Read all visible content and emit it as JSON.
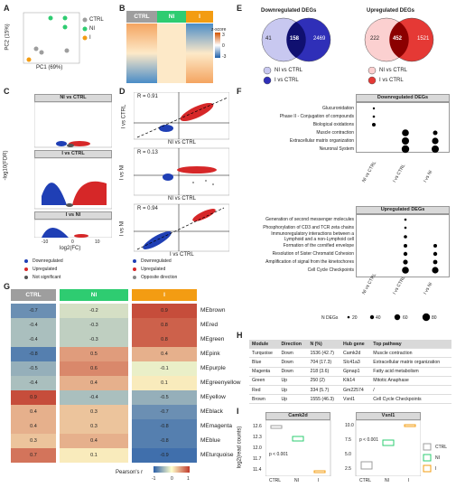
{
  "panels": {
    "A": "A",
    "B": "B",
    "C": "C",
    "D": "D",
    "E": "E",
    "F": "F",
    "G": "G",
    "H": "H",
    "I": "I"
  },
  "groups": [
    "CTRL",
    "NI",
    "I"
  ],
  "colors": {
    "ctrl": "#9e9e9e",
    "ni": "#2ecc71",
    "i": "#f39c12",
    "down": "#1f3fb5",
    "up": "#d62728",
    "ns": "#555555"
  },
  "pca": {
    "xlabel": "PC1 (69%)",
    "ylabel": "PC2 (15%)"
  },
  "heatmap": {
    "legend_title": "z-score",
    "ticks": [
      "3",
      "0",
      "-3"
    ]
  },
  "volcano": {
    "titles": [
      "NI vs CTRL",
      "I vs CTRL",
      "I vs NI"
    ],
    "xlabel": "log2(FC)",
    "ylabel": "-log10(FDR)",
    "xticks": [
      "-10",
      "0",
      "10"
    ],
    "legend": [
      "Downregulated",
      "Upregulated",
      "Not significant"
    ]
  },
  "correlation": {
    "panels": [
      {
        "r": "R = 0.91",
        "ylabel": "I vs CTRL",
        "xlabel": "NI vs CTRL"
      },
      {
        "r": "R = 0.13",
        "ylabel": "I vs NI",
        "xlabel": "NI vs CTRL"
      },
      {
        "r": "R = 0.94",
        "ylabel": "I vs NI",
        "xlabel": "I vs CTRL"
      }
    ],
    "xticks": [
      "-10",
      "-5",
      "0",
      "5",
      "10"
    ],
    "legend": [
      "Downregulated",
      "Upregulated",
      "Opposite direction"
    ]
  },
  "venn": {
    "down": {
      "title": "Downregulated DEGs",
      "left": "41",
      "overlap": "158",
      "right": "2469",
      "legend": [
        "NI vs CTRL",
        "I vs CTRL"
      ]
    },
    "up": {
      "title": "Upregulated DEGs",
      "left": "222",
      "overlap": "452",
      "right": "1521",
      "legend": [
        "NI vs CTRL",
        "I vs CTRL"
      ]
    }
  },
  "enrichment": {
    "down_title": "Downregulated DEGs",
    "down_terms": [
      "Glucuronidation",
      "Phase II - Conjugation of compounds",
      "Biological oxidations",
      "Muscle contraction",
      "Extracellular matrix organization",
      "Neuronal System"
    ],
    "up_title": "Upregulated DEGs",
    "up_terms": [
      "Generation of second messenger molecules",
      "Phosphorylation of CD3 and TCR zeta chains",
      "Immunoregulatory interactions between a",
      "Lymphoid and a non-Lymphoid cell",
      "Formation of the cornified envelope",
      "Resolution of Sister Chromatid Cohesion",
      "Amplification of signal from the kinetochores",
      "Cell Cycle Checkpoints"
    ],
    "columns": [
      "NI vs CTRL",
      "I vs CTRL",
      "I vs NI"
    ],
    "size_title": "N DEGs",
    "size_ticks": [
      "20",
      "40",
      "60",
      "80"
    ]
  },
  "modules": {
    "names": [
      "MEbrown",
      "MEred",
      "MEgreen",
      "MEpink",
      "MEpurple",
      "MEgreenyellow",
      "MEyellow",
      "MEblack",
      "MEmagenta",
      "MEblue",
      "MEturquoise"
    ],
    "ctrl": [
      "-0.7",
      "-0.4",
      "-0.4",
      "-0.8",
      "-0.5",
      "-0.4",
      "0.9",
      "0.4",
      "0.4",
      "0.3",
      "0.7"
    ],
    "ni": [
      "-0.2",
      "-0.3",
      "-0.3",
      "0.5",
      "0.6",
      "0.4",
      "-0.4",
      "0.3",
      "0.3",
      "0.4",
      "0.1"
    ],
    "i": [
      "0.9",
      "0.8",
      "0.8",
      "0.4",
      "-0.1",
      "0.1",
      "-0.5",
      "-0.7",
      "-0.8",
      "-0.8",
      "-0.9"
    ],
    "legend_title": "Pearson's r",
    "legend_ticks": [
      "-1",
      "0",
      "1"
    ]
  },
  "table": {
    "headers": [
      "Module",
      "Direction",
      "N (%)",
      "Hub gene",
      "Top pathway"
    ],
    "rows": [
      [
        "Turquoise",
        "Down",
        "1536 (42.7)",
        "Camk2d",
        "Muscle contraction"
      ],
      [
        "Blue",
        "Down",
        "704 (17.3)",
        "Slc41a3",
        "Extracellular matrix organization"
      ],
      [
        "Magenta",
        "Down",
        "218 (3.6)",
        "Gpnap1",
        "Fatty acid metabolism"
      ],
      [
        "Green",
        "Up",
        "250 (2)",
        "Klk14",
        "Mitotic Anaphase"
      ],
      [
        "Red",
        "Up",
        "334 (5.7)",
        "Gm22574",
        "/"
      ],
      [
        "Brown",
        "Up",
        "1555 (46.3)",
        "Vsnl1",
        "Cell Cycle Checkpoints"
      ]
    ]
  },
  "boxplots": {
    "ylabel": "log2(read counts)",
    "plots": [
      {
        "title": "Camk2d",
        "p": "p < 0.001",
        "yticks": [
          "12.6",
          "12.3",
          "12.0",
          "11.7",
          "11.4"
        ],
        "ctrl": 12.6,
        "ni": 12.35,
        "i": 11.45
      },
      {
        "title": "Vsnl1",
        "p": "p < 0.001",
        "yticks": [
          "10.0",
          "7.5",
          "5.0",
          "2.5"
        ],
        "ctrl": 2.0,
        "ni": 6.8,
        "i": 10.0
      }
    ],
    "legend": [
      "CTRL",
      "NI",
      "I"
    ]
  }
}
